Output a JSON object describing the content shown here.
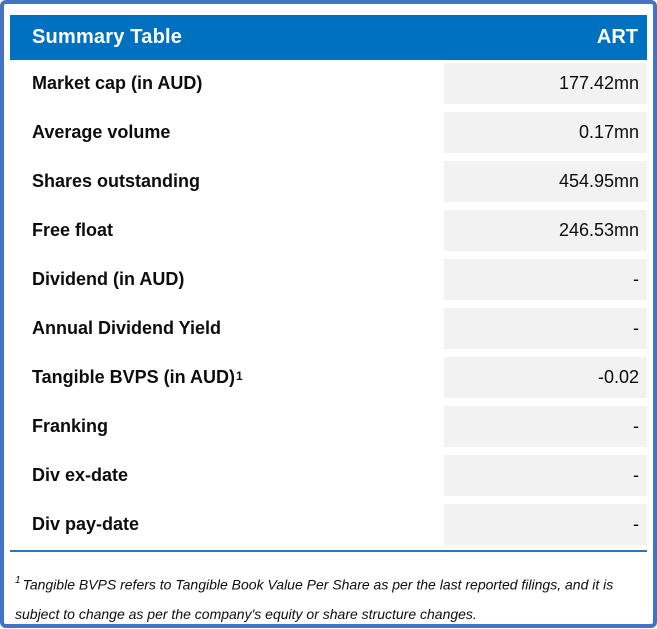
{
  "header": {
    "title": "Summary Table",
    "ticker": "ART"
  },
  "rows": [
    {
      "label": "Market cap (in AUD)",
      "superscript": "",
      "value": "177.42mn"
    },
    {
      "label": "Average volume",
      "superscript": "",
      "value": "0.17mn"
    },
    {
      "label": "Shares outstanding",
      "superscript": "",
      "value": "454.95mn"
    },
    {
      "label": "Free float",
      "superscript": "",
      "value": "246.53mn"
    },
    {
      "label": "Dividend (in AUD)",
      "superscript": "",
      "value": "-"
    },
    {
      "label": "Annual Dividend Yield",
      "superscript": "",
      "value": "-"
    },
    {
      "label": "Tangible BVPS (in AUD)",
      "superscript": "1",
      "value": "-0.02"
    },
    {
      "label": "Franking",
      "superscript": "",
      "value": "-"
    },
    {
      "label": "Div ex-date",
      "superscript": "",
      "value": "-"
    },
    {
      "label": "Div pay-date",
      "superscript": "",
      "value": "-"
    }
  ],
  "footnote": {
    "superscript": "1",
    "text": "Tangible BVPS refers to Tangible Book Value Per Share as per the last reported filings, and it is subject to change as per the company's equity or share structure changes."
  },
  "colors": {
    "outer_border": "#4472C4",
    "header_background": "#0070C0",
    "header_text": "#FFFFFF",
    "value_cell_background": "#F2F2F2",
    "separator_line": "#2E75B6",
    "body_text": "#0D0D0D"
  }
}
